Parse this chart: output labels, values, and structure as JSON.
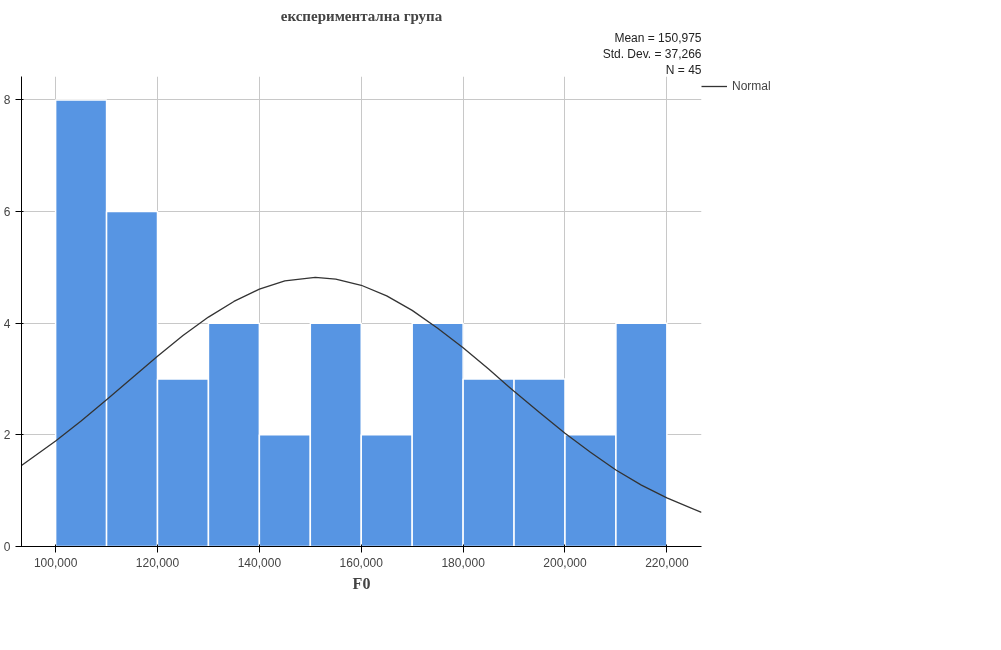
{
  "chart_data": {
    "type": "histogram",
    "title": "експериментална група",
    "xlabel": "F0",
    "bins": [
      100000,
      110000,
      120000,
      130000,
      140000,
      150000,
      160000,
      170000,
      180000,
      190000,
      200000,
      210000,
      220000
    ],
    "values": [
      8,
      6,
      3,
      4,
      2,
      4,
      2,
      4,
      3,
      3,
      2,
      4
    ],
    "color": "#5795e3",
    "series": [
      {
        "type": "line",
        "name": "Normal",
        "color": "#333333",
        "x": [
          93300,
          100000,
          105000,
          110000,
          115000,
          120000,
          125000,
          130000,
          135000,
          140000,
          145000,
          150975,
          155000,
          160000,
          165000,
          170000,
          175000,
          180000,
          185000,
          190000,
          195000,
          200000,
          205000,
          210000,
          215000,
          220000,
          226800
        ],
        "values": [
          1.45,
          1.89,
          2.25,
          2.63,
          3.02,
          3.41,
          3.78,
          4.11,
          4.39,
          4.61,
          4.76,
          4.82,
          4.79,
          4.68,
          4.49,
          4.23,
          3.91,
          3.56,
          3.18,
          2.78,
          2.4,
          2.03,
          1.69,
          1.37,
          1.1,
          0.87,
          0.61
        ]
      }
    ],
    "annotations": [
      "Mean = 150,975",
      "Std. Dev. = 37,266",
      "N = 45"
    ],
    "xlim": [
      93300,
      226800
    ],
    "ylim": [
      0,
      8.42
    ],
    "xticks": [
      {
        "value": 100000,
        "label": "100,000"
      },
      {
        "value": 120000,
        "label": "120,000"
      },
      {
        "value": 140000,
        "label": "140,000"
      },
      {
        "value": 160000,
        "label": "160,000"
      },
      {
        "value": 180000,
        "label": "180,000"
      },
      {
        "value": 200000,
        "label": "200,000"
      },
      {
        "value": 220000,
        "label": "220,000"
      }
    ],
    "yticks": [
      0,
      2,
      4,
      6,
      8
    ],
    "grid": true,
    "legend": "top right"
  }
}
